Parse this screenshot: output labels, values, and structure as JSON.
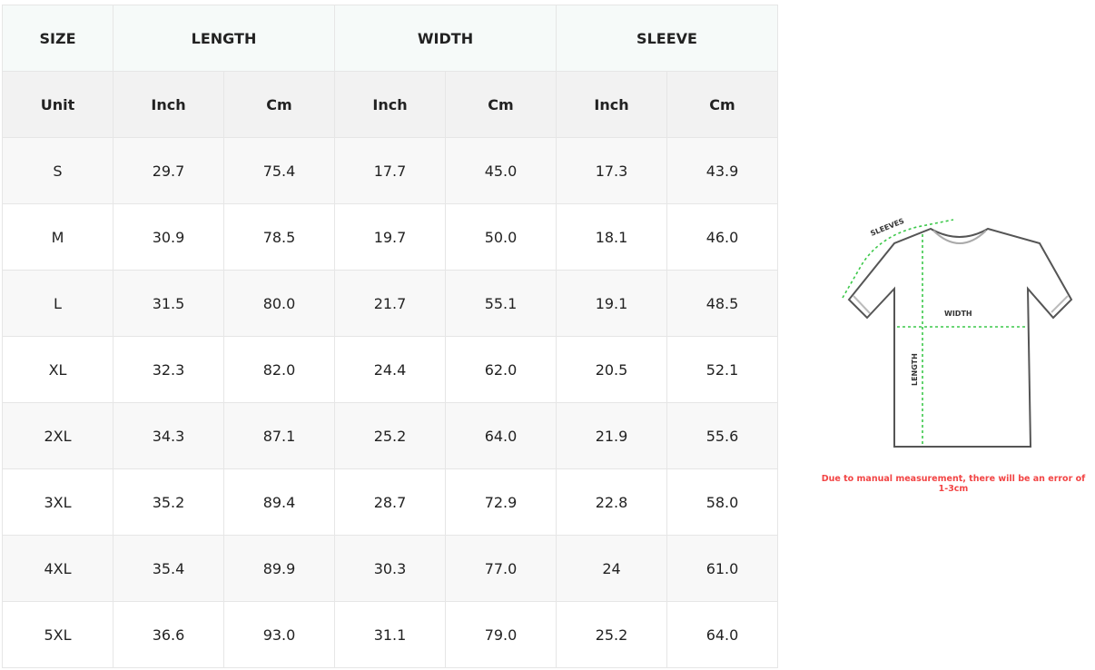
{
  "table": {
    "group_headers": [
      "SIZE",
      "LENGTH",
      "WIDTH",
      "SLEEVE"
    ],
    "unit_headers": [
      "Unit",
      "Inch",
      "Cm",
      "Inch",
      "Cm",
      "Inch",
      "Cm"
    ],
    "rows": [
      [
        "S",
        "29.7",
        "75.4",
        "17.7",
        "45.0",
        "17.3",
        "43.9"
      ],
      [
        "M",
        "30.9",
        "78.5",
        "19.7",
        "50.0",
        "18.1",
        "46.0"
      ],
      [
        "L",
        "31.5",
        "80.0",
        "21.7",
        "55.1",
        "19.1",
        "48.5"
      ],
      [
        "XL",
        "32.3",
        "82.0",
        "24.4",
        "62.0",
        "20.5",
        "52.1"
      ],
      [
        "2XL",
        "34.3",
        "87.1",
        "25.2",
        "64.0",
        "21.9",
        "55.6"
      ],
      [
        "3XL",
        "35.2",
        "89.4",
        "28.7",
        "72.9",
        "22.8",
        "58.0"
      ],
      [
        "4XL",
        "35.4",
        "89.9",
        "30.3",
        "77.0",
        "24",
        "61.0"
      ],
      [
        "5XL",
        "36.6",
        "93.0",
        "31.1",
        "79.0",
        "25.2",
        "64.0"
      ]
    ]
  },
  "diagram": {
    "sleeves_label": "SLEEVES",
    "width_label": "WIDTH",
    "length_label": "LENGTH",
    "measure_color": "#3cc84a"
  },
  "note": "Due to manual measurement, there will be an error of 1-3cm"
}
